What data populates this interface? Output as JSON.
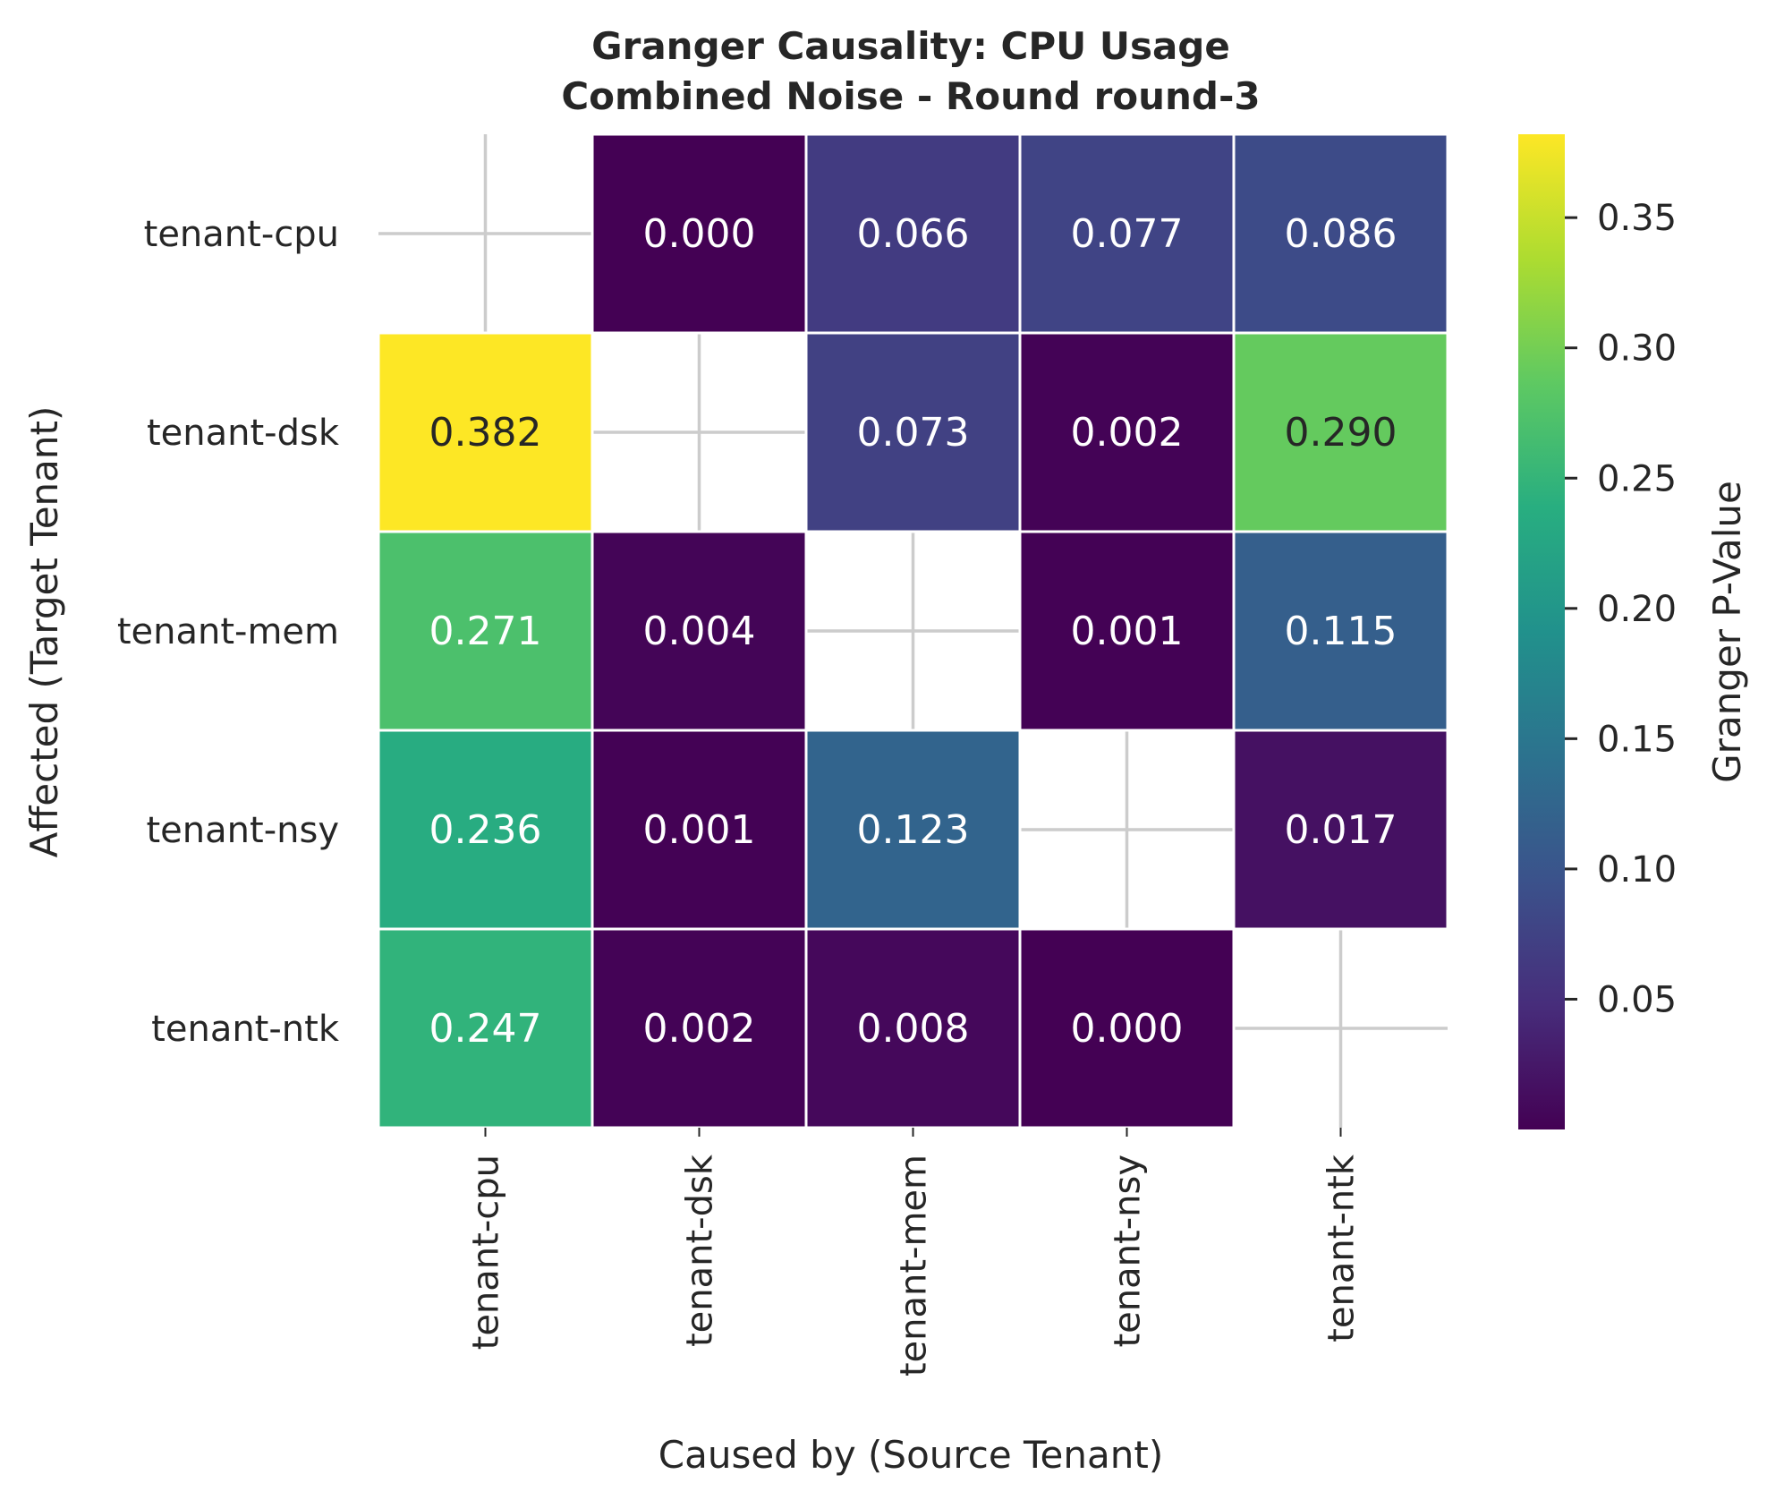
{
  "chart_data": {
    "type": "heatmap",
    "title_lines": [
      "Granger Causality: CPU Usage",
      "Combined Noise - Round round-3"
    ],
    "xlabel": "Caused by (Source Tenant)",
    "ylabel": "Affected (Target Tenant)",
    "x_categories": [
      "tenant-cpu",
      "tenant-dsk",
      "tenant-mem",
      "tenant-nsy",
      "tenant-ntk"
    ],
    "y_categories": [
      "tenant-cpu",
      "tenant-dsk",
      "tenant-mem",
      "tenant-nsy",
      "tenant-ntk"
    ],
    "values": [
      [
        null,
        0.0,
        0.066,
        0.077,
        0.086
      ],
      [
        0.382,
        null,
        0.073,
        0.002,
        0.29
      ],
      [
        0.271,
        0.004,
        null,
        0.001,
        0.115
      ],
      [
        0.236,
        0.001,
        0.123,
        null,
        0.017
      ],
      [
        0.247,
        0.002,
        0.008,
        0.0,
        null
      ]
    ],
    "value_labels": [
      [
        "",
        "0.000",
        "0.066",
        "0.077",
        "0.086"
      ],
      [
        "0.382",
        "",
        "0.073",
        "0.002",
        "0.290"
      ],
      [
        "0.271",
        "0.004",
        "",
        "0.001",
        "0.115"
      ],
      [
        "0.236",
        "0.001",
        "0.123",
        "",
        "0.017"
      ],
      [
        "0.247",
        "0.002",
        "0.008",
        "0.000",
        ""
      ]
    ],
    "colormap": "viridis",
    "colorbar": {
      "label": "Granger P-Value",
      "range": [
        0.0,
        0.382
      ],
      "ticks": [
        0.05,
        0.1,
        0.15,
        0.2,
        0.25,
        0.3,
        0.35
      ],
      "tick_labels": [
        "0.05",
        "0.10",
        "0.15",
        "0.20",
        "0.25",
        "0.30",
        "0.35"
      ]
    },
    "diagonal": "empty",
    "grid": true
  }
}
